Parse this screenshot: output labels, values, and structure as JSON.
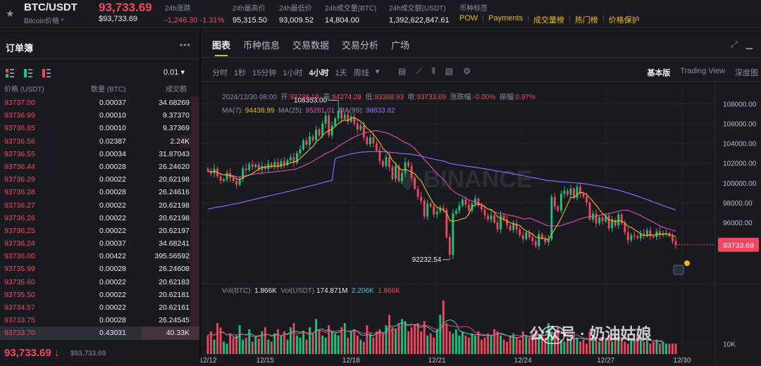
{
  "header": {
    "star_icon": "star-icon",
    "pair": "BTC/USDT",
    "pair_sub": "Bitcoin价格 *",
    "price": "93,733.69",
    "price_usd": "$93,733.69",
    "stats": [
      {
        "label": "24h涨跌",
        "value": "-1,246.30 -1.31%",
        "red": true
      },
      {
        "label": "24h最高价",
        "value": "95,315.50"
      },
      {
        "label": "24h最低价",
        "value": "93,009.52"
      },
      {
        "label": "24h成交量(BTC)",
        "value": "14,804.00"
      },
      {
        "label": "24h成交额(USDT)",
        "value": "1,392,622,847.61"
      },
      {
        "label": "币种标签",
        "value": ""
      }
    ],
    "tags": [
      "POW",
      "Payments",
      "成交量榜",
      "热门榜",
      "价格保护"
    ]
  },
  "orderbook": {
    "title": "订单簿",
    "step": "0.01 ▾",
    "col_price": "价格 (USDT)",
    "col_qty": "数量 (BTC)",
    "col_total": "成交额",
    "rows": [
      {
        "price": "93737.00",
        "qty": "0.00037",
        "total": "34.68269"
      },
      {
        "price": "93736.99",
        "qty": "0.00010",
        "total": "9.37370"
      },
      {
        "price": "93736.85",
        "qty": "0.00010",
        "total": "9.37369"
      },
      {
        "price": "93736.56",
        "qty": "0.02387",
        "total": "2.24K"
      },
      {
        "price": "93736.55",
        "qty": "0.00034",
        "total": "31.87043"
      },
      {
        "price": "93736.44",
        "qty": "0.00028",
        "total": "26.24620"
      },
      {
        "price": "93736.29",
        "qty": "0.00022",
        "total": "20.62198"
      },
      {
        "price": "93736.28",
        "qty": "0.00028",
        "total": "26.24616"
      },
      {
        "price": "93736.27",
        "qty": "0.00022",
        "total": "20.62198"
      },
      {
        "price": "93736.26",
        "qty": "0.00022",
        "total": "20.62198"
      },
      {
        "price": "93736.25",
        "qty": "0.00022",
        "total": "20.62197"
      },
      {
        "price": "93736.24",
        "qty": "0.00037",
        "total": "34.68241"
      },
      {
        "price": "93736.00",
        "qty": "0.00422",
        "total": "395.56592"
      },
      {
        "price": "93735.99",
        "qty": "0.00028",
        "total": "26.24608"
      },
      {
        "price": "93735.60",
        "qty": "0.00022",
        "total": "20.62183"
      },
      {
        "price": "93735.50",
        "qty": "0.00022",
        "total": "20.62181"
      },
      {
        "price": "93734.57",
        "qty": "0.00022",
        "total": "20.62161"
      },
      {
        "price": "93733.75",
        "qty": "0.00028",
        "total": "26.24545"
      },
      {
        "price": "93733.70",
        "qty": "0.43031",
        "total": "40.33K"
      }
    ],
    "last_price": "93,733.69 ↓",
    "last_usd": "$93,733.69"
  },
  "chart_panel": {
    "tabs": [
      "图表",
      "币种信息",
      "交易数据",
      "交易分析",
      "广场"
    ],
    "intervals": [
      "分时",
      "1秒",
      "15分钟",
      "1小时",
      "4小时",
      "1天",
      "周线",
      "▾"
    ],
    "active_interval": "4小时",
    "views": [
      "基本版",
      "Trading View",
      "深度图"
    ],
    "active_view": "基本版",
    "ohlc": {
      "date": "2024/12/30 08:00",
      "open_label": "开:",
      "open": "93738.19",
      "high_label": "高:",
      "high": "94274.29",
      "low_label": "低:",
      "low": "93368.93",
      "close_label": "收:",
      "close": "93733.69",
      "change_label": "涨跌幅:",
      "change": "-0.00%",
      "amp_label": "振幅:",
      "amp": "0.97%"
    },
    "ma": {
      "ma7_label": "MA(7):",
      "ma7": "94438.99",
      "ma25_label": "MA(25):",
      "ma25": "95281.01",
      "ma99_label": "MA(99):",
      "ma99": "98833.82"
    },
    "vol": {
      "vbtc_label": "Vol(BTC):",
      "vbtc": "1.866K",
      "vusdt_label": "Vol(USDT)",
      "vusdt": "174.871M",
      "v1": "2.206K",
      "v2": "1.866K"
    },
    "watermark": "公众号 · 奶油姑娘"
  },
  "colors": {
    "up": "#0ecb81",
    "down": "#f6465d",
    "accent": "#f0b90b",
    "ma7": "#f0b90b",
    "ma25": "#e04cb6",
    "ma99": "#9b6cff"
  },
  "chart_data": {
    "type": "candlestick",
    "interval": "4h",
    "ylim": [
      90800,
      109600
    ],
    "y_ticks": [
      "108000.00",
      "106000.00",
      "104000.00",
      "102000.00",
      "100000.00",
      "98000.00",
      "96000.00"
    ],
    "x_ticks": [
      "12/12",
      "12/15",
      "12/18",
      "12/21",
      "12/24",
      "12/27",
      "12/30"
    ],
    "annotations": {
      "high": "108353.00",
      "low": "92232.54",
      "last": "93733.69"
    },
    "volume_tick": "10K",
    "closes": [
      101200,
      100950,
      101450,
      100650,
      100200,
      100350,
      101000,
      100500,
      100200,
      99800,
      100400,
      101450,
      101300,
      101900,
      101600,
      101850,
      101300,
      101700,
      101400,
      101950,
      101600,
      102100,
      101600,
      102200,
      101800,
      102300,
      102600,
      102050,
      103000,
      103400,
      104300,
      103850,
      104700,
      104300,
      105400,
      104800,
      106000,
      106800,
      104800,
      105800,
      106500,
      107300,
      106500,
      106900,
      106200,
      106700,
      106000,
      105400,
      105800,
      104600,
      103900,
      104600,
      104000,
      103300,
      102200,
      101700,
      102600,
      101600,
      100400,
      101700,
      100200,
      101000,
      102100,
      101700,
      100500,
      99400,
      98600,
      98200,
      96600,
      97900,
      97600,
      96800,
      97100,
      97500,
      97300,
      94500,
      92700,
      96900,
      97200,
      97700,
      98300,
      97800,
      97200,
      97900,
      98400,
      97700,
      97300,
      96700,
      96300,
      96700,
      96000,
      95300,
      96700,
      96300,
      95700,
      95200,
      95900,
      95300,
      94700,
      94300,
      95000,
      94500,
      94100,
      93600,
      94800,
      94400,
      94000,
      94300,
      98600,
      97600,
      97200,
      98900,
      99200,
      98800,
      99400,
      98500,
      99600,
      98900,
      98600,
      98000,
      96300,
      96900,
      95900,
      96500,
      96100,
      96700,
      95400,
      96200,
      95700,
      96800,
      95900,
      95000,
      94200,
      94700,
      94600,
      94400,
      94900,
      94700,
      95200,
      94600,
      94500,
      95100,
      94700,
      94900,
      94900,
      94600,
      94100,
      93733.69
    ],
    "volume": [
      18,
      22,
      14,
      30,
      26,
      12,
      10,
      20,
      16,
      18,
      28,
      14,
      16,
      24,
      12,
      18,
      15,
      22,
      26,
      14,
      12,
      20,
      24,
      18,
      22,
      14,
      26,
      30,
      18,
      16,
      22,
      14,
      26,
      20,
      34,
      24,
      18,
      16,
      28,
      22,
      20,
      18,
      26,
      30,
      16,
      22,
      24,
      18,
      14,
      12,
      28,
      20,
      16,
      22,
      24,
      20,
      28,
      38,
      26,
      24,
      30,
      34,
      32,
      22,
      26,
      28,
      30,
      22,
      32,
      18,
      20,
      16,
      24,
      38,
      52,
      30,
      22,
      20,
      24,
      18,
      22,
      18,
      16,
      20,
      18,
      22,
      14,
      16,
      20,
      18,
      24,
      22,
      18,
      14,
      12,
      18,
      20,
      16,
      14,
      22,
      18,
      16,
      20,
      24,
      18,
      14,
      16,
      30,
      22,
      18,
      26,
      14,
      12,
      16,
      14,
      18,
      16,
      12,
      14,
      10,
      22,
      18,
      14,
      12,
      16,
      14,
      20,
      12,
      18,
      16,
      14,
      12,
      10,
      14,
      12,
      18,
      16,
      12,
      14,
      10,
      12,
      14,
      10,
      12
    ]
  }
}
